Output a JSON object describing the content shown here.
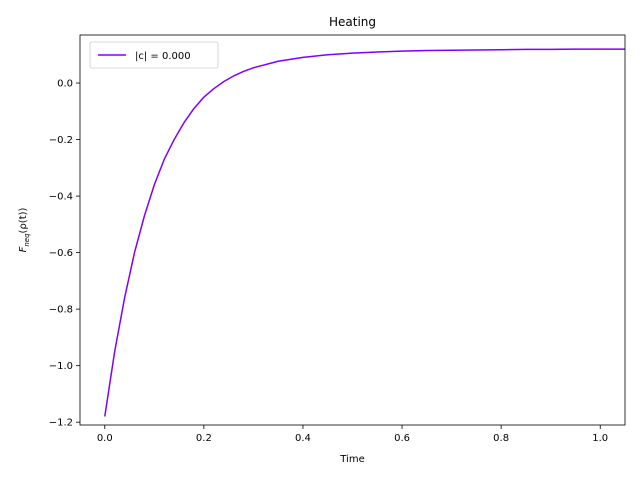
{
  "chart_data": {
    "type": "line",
    "title": "Heating",
    "xlabel": "Time",
    "ylabel_main": "F",
    "ylabel_sub": "neq",
    "ylabel_rest": "(ρ(t))",
    "xlim": [
      -0.05,
      1.05
    ],
    "ylim": [
      -1.21,
      0.17
    ],
    "xticks": [
      0.0,
      0.2,
      0.4,
      0.6,
      0.8,
      1.0
    ],
    "xtick_labels": [
      "0.0",
      "0.2",
      "0.4",
      "0.6",
      "0.8",
      "1.0"
    ],
    "yticks": [
      -1.2,
      -1.0,
      -0.8,
      -0.6,
      -0.4,
      -0.2,
      0.0
    ],
    "ytick_labels": [
      "−1.2",
      "−1.0",
      "−0.8",
      "−0.6",
      "−0.4",
      "−0.2",
      "0.0"
    ],
    "legend_position": "top-left",
    "grid": false,
    "series": [
      {
        "name": "|c| = 0.000",
        "color": "#7f00ff",
        "x": [
          0.0,
          0.02,
          0.04,
          0.06,
          0.08,
          0.1,
          0.12,
          0.14,
          0.16,
          0.18,
          0.2,
          0.22,
          0.24,
          0.26,
          0.28,
          0.3,
          0.35,
          0.4,
          0.45,
          0.5,
          0.55,
          0.6,
          0.65,
          0.7,
          0.75,
          0.8,
          0.85,
          0.9,
          0.95,
          1.0,
          1.05
        ],
        "y": [
          -1.18,
          -0.95,
          -0.76,
          -0.6,
          -0.47,
          -0.36,
          -0.27,
          -0.2,
          -0.14,
          -0.09,
          -0.05,
          -0.02,
          0.005,
          0.025,
          0.041,
          0.054,
          0.077,
          0.091,
          0.1,
          0.106,
          0.11,
          0.113,
          0.115,
          0.116,
          0.117,
          0.118,
          0.119,
          0.119,
          0.12,
          0.12,
          0.12
        ]
      }
    ]
  }
}
